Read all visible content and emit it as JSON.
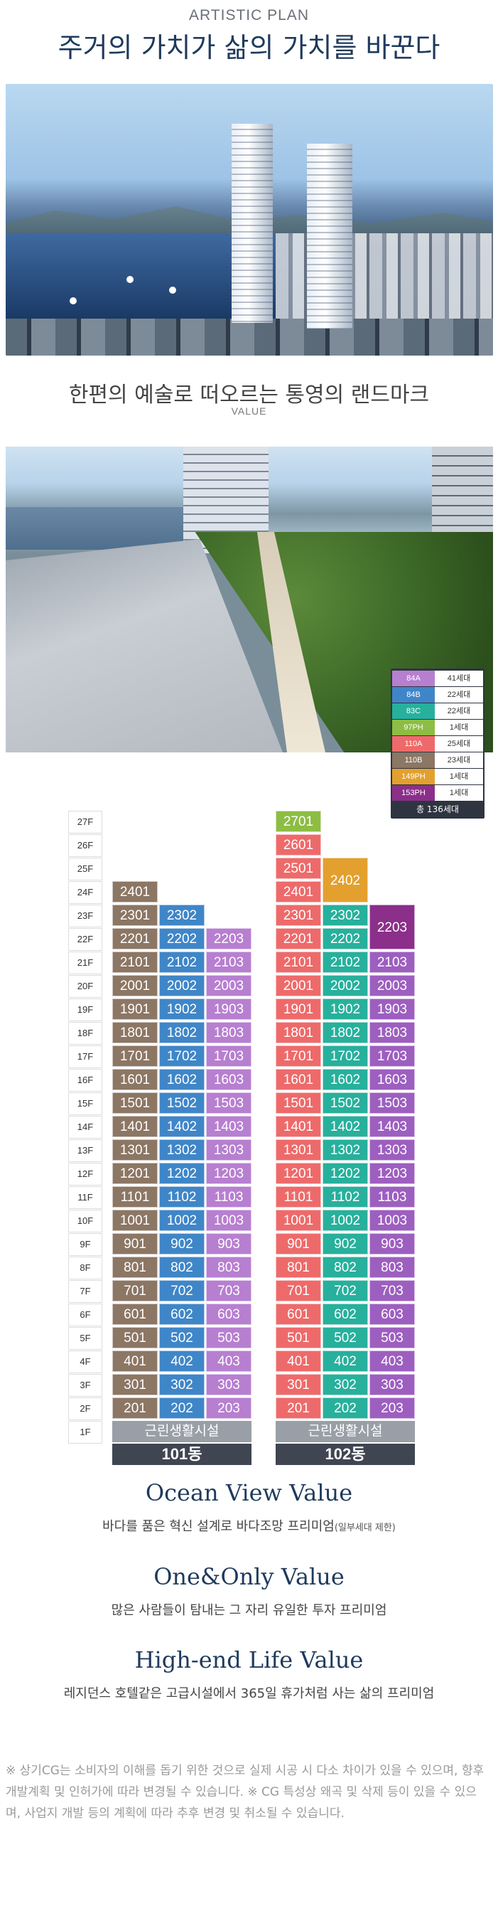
{
  "header": {
    "eyebrow": "ARTISTIC PLAN",
    "title": "주거의 가치가 삶의 가치를 바꾼다"
  },
  "section2": {
    "title": "한편의 예술로 떠오르는 통영의 랜드마크",
    "subtitle": "VALUE"
  },
  "legend": {
    "items": [
      {
        "type": "84A",
        "count": "41세대",
        "color": "#b77fd0"
      },
      {
        "type": "84B",
        "count": "22세대",
        "color": "#3f86c8"
      },
      {
        "type": "83C",
        "count": "22세대",
        "color": "#27b09c"
      },
      {
        "type": "97PH",
        "count": "1세대",
        "color": "#8dbd44"
      },
      {
        "type": "110A",
        "count": "25세대",
        "color": "#ee6a6a"
      },
      {
        "type": "110B",
        "count": "23세대",
        "color": "#8c7664"
      },
      {
        "type": "149PH",
        "count": "1세대",
        "color": "#e3a02e"
      },
      {
        "type": "153PH",
        "count": "1세대",
        "color": "#8b2f8a"
      }
    ],
    "total": "총 136세대"
  },
  "floors": [
    "27F",
    "26F",
    "25F",
    "24F",
    "23F",
    "22F",
    "21F",
    "20F",
    "19F",
    "18F",
    "17F",
    "16F",
    "15F",
    "14F",
    "13F",
    "12F",
    "11F",
    "10F",
    "9F",
    "8F",
    "7F",
    "6F",
    "5F",
    "4F",
    "3F",
    "2F",
    "1F"
  ],
  "building101": {
    "name": "101동",
    "amenity": "근린생활시설",
    "special": {
      "2401": "2401",
      "2302": "2302",
      "2301": "2301"
    }
  },
  "building102": {
    "name": "102동",
    "amenity": "근린생활시설",
    "ph_2701": "2701",
    "ph_2402": "2402",
    "ph_2203": "2203",
    "u_2601": "2601",
    "u_2501": "2501",
    "u_2401": "2401",
    "u_2301": "2301",
    "u_2302": "2302"
  },
  "values": [
    {
      "title": "Ocean View Value",
      "desc": "바다를 품은 혁신 설계로 바다조망 프리미엄",
      "note": "(일부세대 제한)"
    },
    {
      "title": "One&Only Value",
      "desc": "많은 사람들이 탐내는 그 자리 유일한 투자 프리미엄",
      "note": ""
    },
    {
      "title": "High-end Life Value",
      "desc": "레지던스 호텔같은 고급시설에서 365일 휴가처럼 사는 삶의 프리미엄",
      "note": ""
    }
  ],
  "disclaimer": "※ 상기CG는 소비자의 이해를 돕기 위한 것으로 실제 시공 시 다소 차이가 있을 수 있으며, 향후 개발계획 및 인허가에 따라 변경될 수 있습니다. ※ CG 특성상 왜곡 및 삭제 등이 있을 수 있으며, 사업지 개발 등의 계획에 따라 추후 변경 및 취소될 수 있습니다."
}
